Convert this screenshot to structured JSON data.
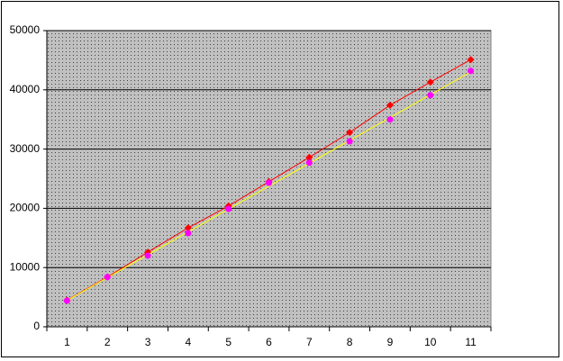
{
  "chart_data": {
    "type": "line",
    "categories": [
      "1",
      "2",
      "3",
      "4",
      "5",
      "6",
      "7",
      "8",
      "9",
      "10",
      "11"
    ],
    "series": [
      {
        "color": "#ff0000",
        "marker_color": "#ff0000",
        "marker": "diamond",
        "line": true,
        "values": [
          4500,
          8400,
          12600,
          16700,
          20400,
          24500,
          28600,
          32800,
          37400,
          41300,
          45100
        ]
      },
      {
        "color": "#ffff00",
        "marker_color": "#ff00ff",
        "marker": "circle",
        "line": false,
        "trendline": true,
        "values": [
          4400,
          8400,
          12000,
          15800,
          19900,
          24300,
          27700,
          31300,
          35000,
          39100,
          43200
        ]
      }
    ],
    "ylim": [
      0,
      50000
    ],
    "yticks": [
      0,
      10000,
      20000,
      30000,
      40000,
      50000
    ],
    "grid": true
  }
}
